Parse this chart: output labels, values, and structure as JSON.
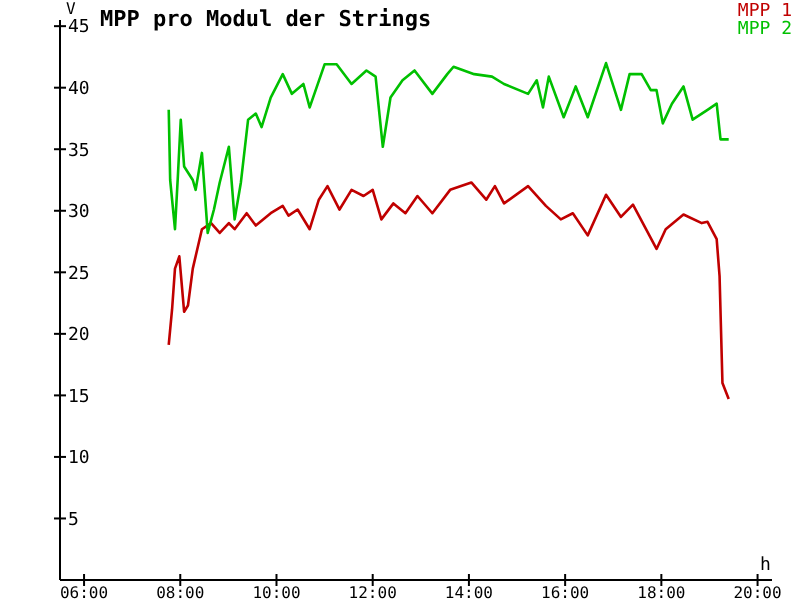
{
  "chart_data": {
    "type": "line",
    "title": "MPP pro Modul der Strings",
    "xlabel": "h",
    "ylabel": "V",
    "xlim": [
      5.5,
      20.3
    ],
    "ylim": [
      0,
      45.5
    ],
    "xticks": [
      {
        "value": 6,
        "label": "06:00"
      },
      {
        "value": 8,
        "label": "08:00"
      },
      {
        "value": 10,
        "label": "10:00"
      },
      {
        "value": 12,
        "label": "12:00"
      },
      {
        "value": 14,
        "label": "14:00"
      },
      {
        "value": 16,
        "label": "16:00"
      },
      {
        "value": 18,
        "label": "18:00"
      },
      {
        "value": 20,
        "label": "20:00"
      }
    ],
    "yticks": [
      5,
      10,
      15,
      20,
      25,
      30,
      35,
      40,
      45
    ],
    "grid": false,
    "legend": "top right",
    "marker": "none",
    "line_style": "solid",
    "series": [
      {
        "name": "MPP 1",
        "color": "#c00000",
        "x": [
          7.76,
          7.83,
          7.89,
          7.98,
          8.08,
          8.16,
          8.26,
          8.45,
          8.64,
          8.82,
          9.01,
          9.13,
          9.38,
          9.57,
          9.88,
          10.13,
          10.25,
          10.44,
          10.69,
          10.88,
          11.06,
          11.31,
          11.56,
          11.81,
          12.0,
          12.18,
          12.43,
          12.68,
          12.93,
          13.24,
          13.61,
          14.05,
          14.36,
          14.54,
          14.73,
          15.23,
          15.6,
          15.91,
          16.16,
          16.47,
          16.85,
          17.16,
          17.41,
          17.9,
          18.09,
          18.46,
          18.84,
          18.96,
          19.15,
          19.21,
          19.27,
          19.4
        ],
        "values": [
          19.1,
          22.0,
          25.3,
          26.3,
          21.8,
          22.3,
          25.3,
          28.5,
          29.0,
          28.2,
          29.0,
          28.5,
          29.8,
          28.8,
          29.8,
          30.4,
          29.6,
          30.1,
          28.5,
          30.9,
          32.0,
          30.1,
          31.7,
          31.2,
          31.7,
          29.3,
          30.6,
          29.8,
          31.2,
          29.8,
          31.7,
          32.3,
          30.9,
          32.0,
          30.6,
          32.0,
          30.4,
          29.3,
          29.8,
          28.0,
          31.3,
          29.5,
          30.5,
          26.9,
          28.5,
          29.7,
          29.0,
          29.1,
          27.7,
          24.7,
          16.0,
          14.7
        ]
      },
      {
        "name": "MPP 2",
        "color": "#00c000",
        "x": [
          7.76,
          7.79,
          7.89,
          7.95,
          8.01,
          8.08,
          8.26,
          8.32,
          8.45,
          8.57,
          8.7,
          8.82,
          9.01,
          9.13,
          9.26,
          9.41,
          9.57,
          9.69,
          9.88,
          10.13,
          10.32,
          10.56,
          10.69,
          11.0,
          11.25,
          11.56,
          11.87,
          12.06,
          12.21,
          12.37,
          12.62,
          12.87,
          13.24,
          13.55,
          13.68,
          14.11,
          14.48,
          14.73,
          15.23,
          15.41,
          15.54,
          15.66,
          15.97,
          16.22,
          16.47,
          16.85,
          17.16,
          17.34,
          17.59,
          17.78,
          17.9,
          18.03,
          18.22,
          18.46,
          18.65,
          18.96,
          19.15,
          19.23,
          19.4
        ],
        "values": [
          38.2,
          32.5,
          28.5,
          32.8,
          37.4,
          33.6,
          32.5,
          31.7,
          34.7,
          28.2,
          30.1,
          32.3,
          35.2,
          29.3,
          32.3,
          37.4,
          37.9,
          36.8,
          39.2,
          41.1,
          39.5,
          40.3,
          38.4,
          41.9,
          41.9,
          40.3,
          41.4,
          40.9,
          35.2,
          39.2,
          40.6,
          41.4,
          39.5,
          41.1,
          41.7,
          41.1,
          40.9,
          40.3,
          39.5,
          40.6,
          38.4,
          40.9,
          37.6,
          40.1,
          37.6,
          42.0,
          38.2,
          41.1,
          41.1,
          39.8,
          39.8,
          37.1,
          38.7,
          40.1,
          37.4,
          38.2,
          38.7,
          35.8,
          35.8
        ]
      }
    ]
  }
}
